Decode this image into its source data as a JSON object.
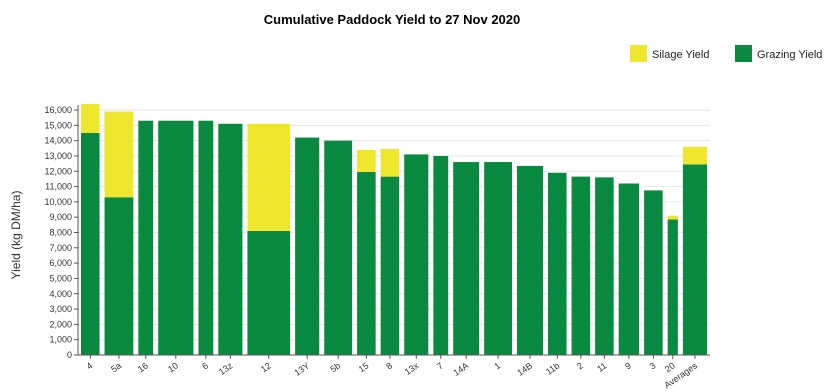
{
  "chart_data": {
    "type": "bar",
    "stacked": true,
    "title": "Cumulative Paddock Yield to 27 Nov 2020",
    "ylabel": "Yield (kg DM/ha)",
    "xlabel": "",
    "ylim": [
      0,
      16000
    ],
    "yticks": [
      0,
      1000,
      2000,
      3000,
      4000,
      5000,
      6000,
      7000,
      8000,
      9000,
      10000,
      11000,
      12000,
      13000,
      14000,
      15000,
      16000
    ],
    "ytick_labels": [
      "0",
      "1,000",
      "2,000",
      "3,000",
      "4,000",
      "5,000",
      "6,000",
      "7,000",
      "8,000",
      "9,000",
      "10,000",
      "11,000",
      "12,000",
      "13,000",
      "14,000",
      "15,000",
      "16,000"
    ],
    "grid": true,
    "legend_position": "top-right",
    "categories": [
      "4",
      "5a",
      "16",
      "10",
      "6",
      "13z",
      "12",
      "13Y",
      "5b",
      "15",
      "8",
      "13x",
      "7",
      "14A",
      "1",
      "14B",
      "11b",
      "2",
      "11",
      "9",
      "3",
      "20",
      "Averages"
    ],
    "series": [
      {
        "name": "Grazing Yield",
        "color": "#0a8a40",
        "values": [
          14500,
          10300,
          15300,
          15300,
          15300,
          15100,
          8100,
          14200,
          14000,
          11950,
          11650,
          13100,
          13000,
          12600,
          12600,
          12350,
          11900,
          11650,
          11600,
          11200,
          10750,
          8850,
          12450
        ]
      },
      {
        "name": "Silage Yield",
        "color": "#eee72e",
        "values": [
          1900,
          5600,
          0,
          0,
          0,
          0,
          7000,
          0,
          0,
          1450,
          1800,
          0,
          0,
          0,
          0,
          0,
          0,
          0,
          0,
          0,
          0,
          250,
          1150
        ]
      }
    ]
  }
}
